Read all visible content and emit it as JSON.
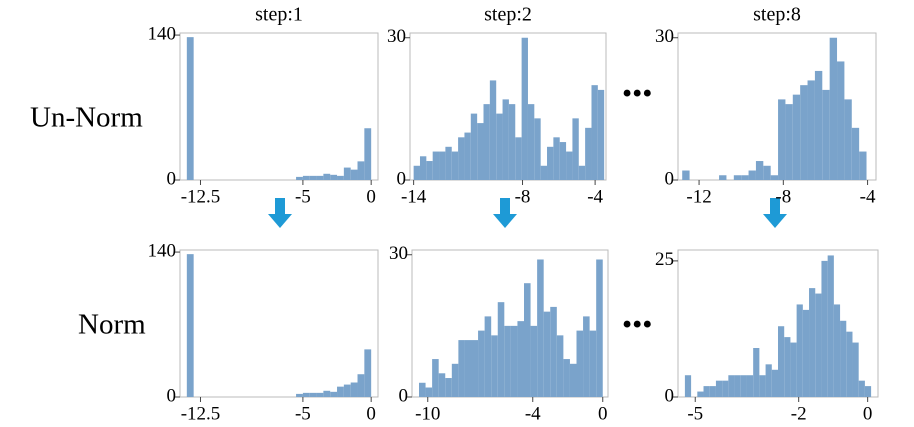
{
  "row_labels": [
    "Un-Norm",
    "Norm"
  ],
  "ellipses": [
    "•••",
    "•••"
  ],
  "chart_data": [
    {
      "type": "histogram",
      "title": "step:1",
      "color": "#7aa3cb",
      "bins": [
        -13.5,
        -13,
        -12.5,
        -12,
        -11.5,
        -11,
        -10.5,
        -10,
        -9.5,
        -9,
        -8.5,
        -8,
        -7.5,
        -7,
        -6.5,
        -6,
        -5.5,
        -5,
        -4.5,
        -4,
        -3.5,
        -3,
        -2.5,
        -2,
        -1.5,
        -1,
        -0.5,
        0
      ],
      "values": [
        138,
        0,
        0,
        0,
        0,
        0,
        0,
        0,
        0,
        0,
        0,
        0,
        0,
        0,
        0,
        0,
        3,
        4,
        4,
        4,
        6,
        5,
        4,
        12,
        10,
        18,
        50
      ],
      "xlim": [
        -14,
        0.5
      ],
      "xticks": [
        -12.5,
        -5,
        0
      ],
      "ylim": [
        0,
        142
      ],
      "yticks": [
        0,
        140
      ]
    },
    {
      "type": "histogram",
      "title": "step:2",
      "color": "#7aa3cb",
      "bins": [
        -14,
        -13.65,
        -13.3,
        -12.95,
        -12.6,
        -12.25,
        -11.9,
        -11.55,
        -11.2,
        -10.85,
        -10.5,
        -10.15,
        -9.8,
        -9.45,
        -9.1,
        -8.75,
        -8.4,
        -8.05,
        -7.7,
        -7.35,
        -7,
        -6.65,
        -6.3,
        -5.95,
        -5.6,
        -5.25,
        -4.9,
        -4.55,
        -4.2,
        -3.85,
        -3.5
      ],
      "values": [
        3,
        5,
        4,
        6,
        6,
        7,
        6,
        9,
        10,
        14,
        12,
        16,
        21,
        14,
        17,
        16,
        9,
        30,
        16,
        13,
        3,
        7,
        9,
        8,
        6,
        13,
        3,
        11,
        20,
        19
      ],
      "xlim": [
        -14.2,
        -3.4
      ],
      "xticks": [
        -14,
        -8,
        -4
      ],
      "ylim": [
        0,
        31
      ],
      "yticks": [
        0,
        30
      ]
    },
    {
      "type": "histogram",
      "title": "step:8",
      "color": "#7aa3cb",
      "bins": [
        -12.8,
        -12.45,
        -12.1,
        -11.75,
        -11.4,
        -11.05,
        -10.7,
        -10.35,
        -10,
        -9.65,
        -9.3,
        -8.95,
        -8.6,
        -8.25,
        -7.9,
        -7.55,
        -7.2,
        -6.85,
        -6.5,
        -6.15,
        -5.8,
        -5.45,
        -5.1,
        -4.75,
        -4.4,
        -4.05
      ],
      "values": [
        2,
        0,
        0,
        0,
        0,
        1,
        0,
        1,
        1,
        2,
        4,
        3,
        1,
        17,
        16,
        18,
        20,
        21,
        23,
        19,
        30,
        25,
        17,
        11,
        6
      ],
      "xlim": [
        -13,
        -3.6
      ],
      "xticks": [
        -12,
        -8,
        -4
      ],
      "ylim": [
        0,
        31
      ],
      "yticks": [
        0,
        30
      ]
    },
    {
      "type": "histogram",
      "color": "#7aa3cb",
      "bins": [
        -13.5,
        -13,
        -12.5,
        -12,
        -11.5,
        -11,
        -10.5,
        -10,
        -9.5,
        -9,
        -8.5,
        -8,
        -7.5,
        -7,
        -6.5,
        -6,
        -5.5,
        -5,
        -4.5,
        -4,
        -3.5,
        -3,
        -2.5,
        -2,
        -1.5,
        -1,
        -0.5,
        0
      ],
      "values": [
        138,
        0,
        0,
        0,
        0,
        0,
        0,
        0,
        0,
        0,
        0,
        0,
        0,
        0,
        0,
        0,
        3,
        4,
        4,
        4,
        6,
        5,
        10,
        12,
        14,
        22,
        46
      ],
      "xlim": [
        -14,
        0.5
      ],
      "xticks": [
        -12.5,
        -5,
        0
      ],
      "ylim": [
        0,
        142
      ],
      "yticks": [
        0,
        140
      ]
    },
    {
      "type": "histogram",
      "color": "#7aa3cb",
      "bins": [
        -10.5,
        -10.125,
        -9.75,
        -9.375,
        -9,
        -8.625,
        -8.25,
        -7.875,
        -7.5,
        -7.125,
        -6.75,
        -6.375,
        -6,
        -5.625,
        -5.25,
        -4.875,
        -4.5,
        -4.125,
        -3.75,
        -3.375,
        -3,
        -2.625,
        -2.25,
        -1.875,
        -1.5,
        -1.125,
        -0.75,
        -0.375,
        0
      ],
      "values": [
        3,
        2,
        8,
        5,
        4,
        7,
        12,
        12,
        12,
        14,
        17,
        13,
        20,
        15,
        15,
        16,
        24,
        15,
        29,
        18,
        19,
        13,
        8,
        7,
        14,
        17,
        14,
        29
      ],
      "xlim": [
        -10.9,
        0.3
      ],
      "xticks": [
        -10,
        -4,
        0
      ],
      "ylim": [
        0,
        31
      ],
      "yticks": [
        0,
        30
      ]
    },
    {
      "type": "histogram",
      "color": "#7aa3cb",
      "bins": [
        -5.3,
        -5.12,
        -4.94,
        -4.76,
        -4.58,
        -4.4,
        -4.22,
        -4.04,
        -3.86,
        -3.68,
        -3.5,
        -3.32,
        -3.14,
        -2.96,
        -2.78,
        -2.6,
        -2.42,
        -2.24,
        -2.06,
        -1.88,
        -1.7,
        -1.52,
        -1.34,
        -1.16,
        -0.98,
        -0.8,
        -0.62,
        -0.44,
        -0.26,
        -0.08,
        0.1
      ],
      "values": [
        4,
        0,
        1,
        2,
        2,
        3,
        3,
        4,
        4,
        4,
        4,
        9,
        4,
        6,
        5,
        13,
        11,
        10,
        17,
        16,
        20,
        19,
        25,
        26,
        17,
        14,
        12,
        10,
        3,
        2
      ],
      "xlim": [
        -5.5,
        0.3
      ],
      "xticks": [
        -5,
        -2,
        0
      ],
      "ylim": [
        0,
        27
      ],
      "yticks": [
        0,
        25
      ]
    }
  ]
}
